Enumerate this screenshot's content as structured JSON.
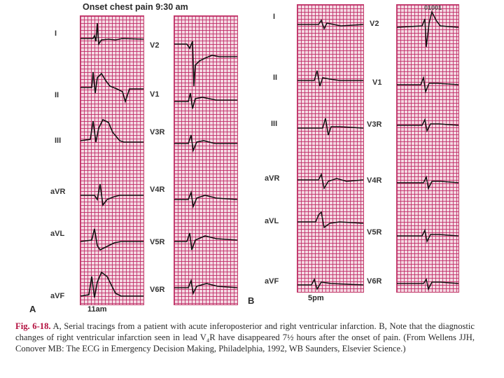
{
  "panel_a": {
    "title": "Onset chest pain 9:30 am",
    "letter": "A",
    "time": "11am",
    "left_leads": [
      "I",
      "II",
      "III",
      "aVR",
      "aVL",
      "aVF"
    ],
    "right_leads": [
      "V2",
      "V1",
      "V3R",
      "V4R",
      "V5R",
      "V6R"
    ]
  },
  "panel_b": {
    "letter": "B",
    "time": "5pm",
    "stamp": "01001",
    "left_leads": [
      "I",
      "II",
      "III",
      "aVR",
      "aVL",
      "aVF"
    ],
    "right_leads": [
      "V2",
      "V1",
      "V3R",
      "V4R",
      "V5R",
      "V6R"
    ]
  },
  "caption": {
    "fig_label": "Fig. 6-18.",
    "text": " A, Serial tracings from a patient with acute inferoposterior and right ventricular infarction. B, Note that the diagnostic changes of right ventricular infarction seen in lead V₄R have disappeared 7½ hours after the onset of pain. (From Wellens JJH, Conover MB: The ECG in Emergency Decision Making, Philadelphia, 1992, WB Saunders, Elsevier Science.)"
  }
}
